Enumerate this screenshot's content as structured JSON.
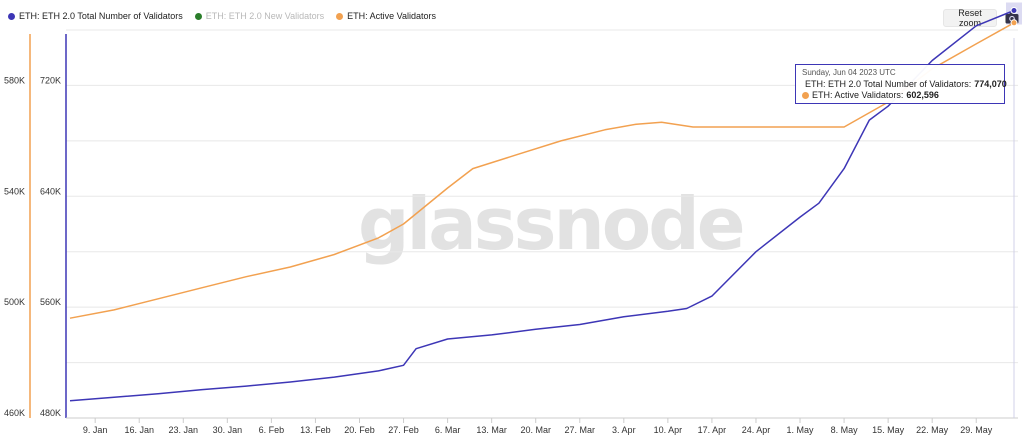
{
  "legend": [
    {
      "label": "ETH: ETH 2.0 Total Number of Validators",
      "color": "#3d36b6",
      "active": true
    },
    {
      "label": "ETH: ETH 2.0 New Validators",
      "color": "#2a7d2a",
      "active": false
    },
    {
      "label": "ETH: Active Validators",
      "color": "#f2a150",
      "active": true
    }
  ],
  "toolbar": {
    "reset_zoom": "Reset zoom",
    "camera_icon": "camera-icon"
  },
  "watermark": "glassnode",
  "tooltip": {
    "date": "Sunday, Jun 04 2023 UTC",
    "rows": [
      {
        "label": "ETH: ETH 2.0 Total Number of Validators:",
        "value": "774,070",
        "color": "#3d36b6"
      },
      {
        "label": "ETH: Active Validators:",
        "value": "602,596",
        "color": "#f2a150"
      }
    ]
  },
  "chart_data": {
    "type": "line",
    "x_ticks": [
      "9. Jan",
      "16. Jan",
      "23. Jan",
      "30. Jan",
      "6. Feb",
      "13. Feb",
      "20. Feb",
      "27. Feb",
      "6. Mar",
      "13. Mar",
      "20. Mar",
      "27. Mar",
      "3. Apr",
      "10. Apr",
      "17. Apr",
      "24. Apr",
      "1. May",
      "8. May",
      "15. May",
      "22. May",
      "29. May"
    ],
    "x_range": [
      "2023-01-05",
      "2023-06-04"
    ],
    "left_axis": {
      "ticks": [
        "460K",
        "500K",
        "540K",
        "580K"
      ],
      "range": [
        460000,
        600000
      ],
      "color": "#f2a150"
    },
    "right_axis": {
      "ticks": [
        "480K",
        "560K",
        "640K",
        "720K"
      ],
      "range": [
        480000,
        760000
      ],
      "color": "#3d36b6"
    },
    "grid": true,
    "series": [
      {
        "name": "ETH: ETH 2.0 Total Number of Validators",
        "axis": "right",
        "color": "#3d36b6",
        "points": [
          [
            "2023-01-05",
            492500
          ],
          [
            "2023-01-12",
            495000
          ],
          [
            "2023-01-19",
            497500
          ],
          [
            "2023-01-26",
            500500
          ],
          [
            "2023-02-02",
            503000
          ],
          [
            "2023-02-09",
            506000
          ],
          [
            "2023-02-16",
            509500
          ],
          [
            "2023-02-23",
            514000
          ],
          [
            "2023-02-27",
            518000
          ],
          [
            "2023-03-01",
            530000
          ],
          [
            "2023-03-06",
            537000
          ],
          [
            "2023-03-13",
            540000
          ],
          [
            "2023-03-20",
            544000
          ],
          [
            "2023-03-27",
            547500
          ],
          [
            "2023-04-03",
            553000
          ],
          [
            "2023-04-10",
            557000
          ],
          [
            "2023-04-13",
            559000
          ],
          [
            "2023-04-17",
            568000
          ],
          [
            "2023-04-24",
            600000
          ],
          [
            "2023-05-01",
            625000
          ],
          [
            "2023-05-04",
            635000
          ],
          [
            "2023-05-08",
            660000
          ],
          [
            "2023-05-12",
            695000
          ],
          [
            "2023-05-15",
            705000
          ],
          [
            "2023-05-22",
            738000
          ],
          [
            "2023-05-29",
            763000
          ],
          [
            "2023-06-04",
            774070
          ]
        ]
      },
      {
        "name": "ETH: Active Validators",
        "axis": "left",
        "color": "#f2a150",
        "points": [
          [
            "2023-01-05",
            496000
          ],
          [
            "2023-01-12",
            499000
          ],
          [
            "2023-01-19",
            503000
          ],
          [
            "2023-01-26",
            507000
          ],
          [
            "2023-02-02",
            511000
          ],
          [
            "2023-02-09",
            514500
          ],
          [
            "2023-02-16",
            519000
          ],
          [
            "2023-02-23",
            525000
          ],
          [
            "2023-02-27",
            530000
          ],
          [
            "2023-03-06",
            543000
          ],
          [
            "2023-03-10",
            550000
          ],
          [
            "2023-03-17",
            555000
          ],
          [
            "2023-03-24",
            560000
          ],
          [
            "2023-03-31",
            564000
          ],
          [
            "2023-04-05",
            566000
          ],
          [
            "2023-04-09",
            566700
          ],
          [
            "2023-04-14",
            565000
          ],
          [
            "2023-05-08",
            565000
          ],
          [
            "2023-05-15",
            574000
          ],
          [
            "2023-05-22",
            586000
          ],
          [
            "2023-05-29",
            595000
          ],
          [
            "2023-06-04",
            602596
          ]
        ]
      }
    ]
  }
}
